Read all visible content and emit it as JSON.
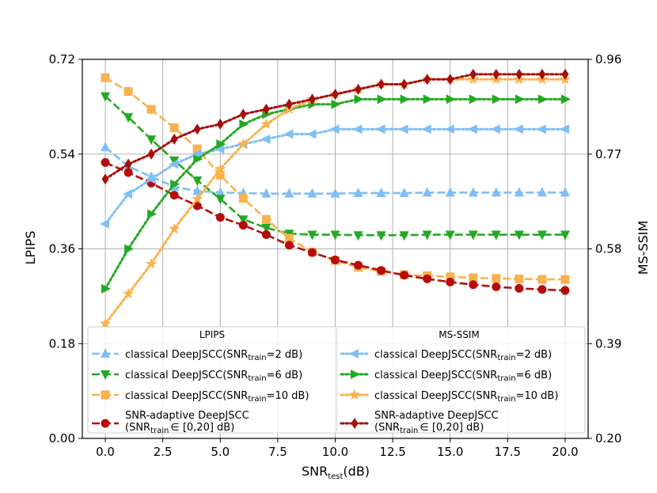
{
  "chart_data": {
    "type": "line",
    "title": "",
    "xlabel": {
      "main": "SNR",
      "sub": "test",
      "tail": "(dB)"
    },
    "ylabel_left": "LPIPS",
    "ylabel_right": "MS-SSIM",
    "xlim": [
      -1,
      21
    ],
    "ylim_left": [
      0,
      0.72
    ],
    "ylim_right": [
      0.2,
      0.96
    ],
    "xticks": [
      0,
      2.5,
      5,
      7.5,
      10,
      12.5,
      15,
      17.5,
      20
    ],
    "xtick_labels": [
      "0.0",
      "2.5",
      "5.0",
      "7.5",
      "10.0",
      "12.5",
      "15.0",
      "17.5",
      "20.0"
    ],
    "yticks_left": [
      0,
      0.18,
      0.36,
      0.54,
      0.72
    ],
    "ytick_labels_left": [
      "0.00",
      "0.18",
      "0.36",
      "0.54",
      "0.72"
    ],
    "yticks_right": [
      0.2,
      0.39,
      0.58,
      0.77,
      0.96
    ],
    "ytick_labels_right": [
      "0.20",
      "0.39",
      "0.58",
      "0.77",
      "0.96"
    ],
    "grid": true,
    "x": [
      0,
      1,
      2,
      3,
      4,
      5,
      6,
      7,
      8,
      9,
      10,
      11,
      12,
      13,
      14,
      15,
      16,
      17,
      18,
      19,
      20
    ],
    "legend_headers": {
      "lpips": "LPIPS",
      "msssim": "MS-SSIM"
    },
    "series": [
      {
        "name": "classical DeepJSCC(SNR_train=2 dB)",
        "label_pre": "classical DeepJSCC(SNR",
        "label_sub": "train",
        "label_post": "=2 dB)",
        "axis": "left",
        "color": "#7fbff5",
        "marker": "triangle-up",
        "style": "dashed",
        "values": [
          0.553,
          0.517,
          0.497,
          0.478,
          0.47,
          0.467,
          0.466,
          0.465,
          0.465,
          0.465,
          0.465,
          0.466,
          0.466,
          0.466,
          0.467,
          0.467,
          0.467,
          0.467,
          0.467,
          0.467,
          0.467
        ]
      },
      {
        "name": "classical DeepJSCC(SNR_train=6 dB)",
        "label_pre": "classical DeepJSCC(SNR",
        "label_sub": "train",
        "label_post": "=6 dB)",
        "axis": "left",
        "color": "#22aa22",
        "marker": "triangle-down",
        "style": "dashed",
        "values": [
          0.65,
          0.61,
          0.568,
          0.528,
          0.49,
          0.455,
          0.416,
          0.4,
          0.389,
          0.387,
          0.387,
          0.386,
          0.386,
          0.386,
          0.387,
          0.387,
          0.387,
          0.387,
          0.387,
          0.387,
          0.387
        ]
      },
      {
        "name": "classical DeepJSCC(SNR_train=10 dB)",
        "label_pre": "classical DeepJSCC(SNR",
        "label_sub": "train",
        "label_post": "=10 dB)",
        "axis": "left",
        "color": "#f9b24e",
        "marker": "square",
        "style": "dashed",
        "values": [
          0.685,
          0.659,
          0.625,
          0.59,
          0.55,
          0.5,
          0.456,
          0.416,
          0.38,
          0.354,
          0.338,
          0.325,
          0.317,
          0.311,
          0.309,
          0.307,
          0.305,
          0.304,
          0.303,
          0.302,
          0.302
        ]
      },
      {
        "name": "SNR-adaptive DeepJSCC (SNR_train ∈ [0,20] dB)",
        "label_line1": "SNR-adaptive DeepJSCC",
        "label_pre": "(SNR",
        "label_sub": "train",
        "label_post": "∈ [0,20] dB)",
        "axis": "left",
        "color": "#b50d0d",
        "marker": "circle",
        "style": "dashed",
        "values": [
          0.524,
          0.505,
          0.485,
          0.462,
          0.442,
          0.42,
          0.405,
          0.387,
          0.367,
          0.353,
          0.339,
          0.329,
          0.319,
          0.31,
          0.303,
          0.297,
          0.292,
          0.288,
          0.285,
          0.283,
          0.281
        ]
      },
      {
        "name": "classical DeepJSCC(SNR_train=2 dB)",
        "label_pre": "classical DeepJSCC(SNR",
        "label_sub": "train",
        "label_post": "=2 dB)",
        "axis": "right",
        "color": "#7fbff5",
        "marker": "triangle-left",
        "style": "dotted",
        "values": [
          0.63,
          0.69,
          0.72,
          0.75,
          0.77,
          0.78,
          0.79,
          0.8,
          0.81,
          0.81,
          0.82,
          0.82,
          0.82,
          0.82,
          0.82,
          0.82,
          0.82,
          0.82,
          0.82,
          0.82,
          0.82
        ]
      },
      {
        "name": "classical DeepJSCC(SNR_train=6 dB)",
        "label_pre": "classical DeepJSCC(SNR",
        "label_sub": "train",
        "label_post": "=6 dB)",
        "axis": "right",
        "color": "#22aa22",
        "marker": "triangle-right",
        "style": "dotted",
        "values": [
          0.5,
          0.58,
          0.65,
          0.71,
          0.76,
          0.79,
          0.83,
          0.85,
          0.86,
          0.87,
          0.87,
          0.88,
          0.88,
          0.88,
          0.88,
          0.88,
          0.88,
          0.88,
          0.88,
          0.88,
          0.88
        ]
      },
      {
        "name": "classical DeepJSCC(SNR_train=10 dB)",
        "label_pre": "classical DeepJSCC(SNR",
        "label_sub": "train",
        "label_post": "=10 dB)",
        "axis": "right",
        "color": "#f9b24e",
        "marker": "star",
        "style": "dotted",
        "values": [
          0.43,
          0.49,
          0.55,
          0.62,
          0.68,
          0.74,
          0.79,
          0.83,
          0.86,
          0.88,
          0.89,
          0.9,
          0.91,
          0.91,
          0.92,
          0.92,
          0.92,
          0.92,
          0.92,
          0.92,
          0.92
        ]
      },
      {
        "name": "SNR-adaptive DeepJSCC (SNR_train ∈ [0,20] dB)",
        "label_line1": "SNR-adaptive DeepJSCC",
        "label_pre": "(SNR",
        "label_sub": "train",
        "label_post": "∈ [0,20] dB)",
        "axis": "right",
        "color": "#a50e0e",
        "marker": "diamond",
        "style": "dotted",
        "values": [
          0.72,
          0.75,
          0.77,
          0.8,
          0.82,
          0.83,
          0.85,
          0.86,
          0.87,
          0.88,
          0.89,
          0.9,
          0.91,
          0.91,
          0.92,
          0.92,
          0.93,
          0.93,
          0.93,
          0.93,
          0.93
        ]
      }
    ]
  }
}
